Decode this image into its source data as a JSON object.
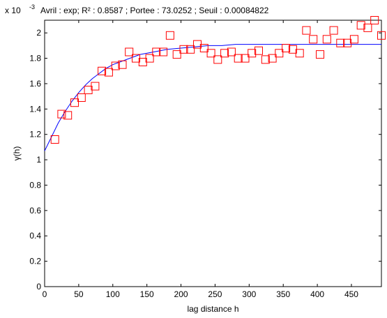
{
  "chart_data": {
    "type": "scatter",
    "title": "Avril : exp;  R² : 0.8587 ; Portee : 73.0252 ; Seuil : 0.00084822",
    "y_exponent_label": "x 10",
    "y_exponent": "-3",
    "xlabel": "lag distance h",
    "ylabel": "γ(h)",
    "xlim": [
      0,
      494
    ],
    "ylim": [
      0,
      0.0021
    ],
    "x_ticks": [
      0,
      50,
      100,
      150,
      200,
      250,
      300,
      350,
      400,
      450
    ],
    "y_ticks": [
      0,
      0.2,
      0.4,
      0.6,
      0.8,
      1,
      1.2,
      1.4,
      1.6,
      1.8,
      2
    ],
    "y_tick_scale": 0.001,
    "grid": false,
    "colors": {
      "points": "#ff0000",
      "fit": "#0000ff",
      "axes": "#000000"
    },
    "series": [
      {
        "type": "scatter",
        "marker": "square",
        "x": [
          15,
          25,
          34,
          44,
          54,
          64,
          74,
          84,
          94,
          104,
          114,
          124,
          134,
          144,
          154,
          164,
          174,
          184,
          194,
          204,
          214,
          224,
          234,
          244,
          254,
          264,
          274,
          284,
          294,
          304,
          314,
          324,
          334,
          344,
          354,
          364,
          374,
          384,
          394,
          404,
          414,
          424,
          434,
          444,
          454,
          464,
          474,
          484,
          494
        ],
        "y": [
          1.16,
          1.36,
          1.35,
          1.45,
          1.49,
          1.55,
          1.58,
          1.7,
          1.69,
          1.74,
          1.75,
          1.85,
          1.8,
          1.77,
          1.8,
          1.85,
          1.85,
          1.98,
          1.83,
          1.87,
          1.87,
          1.91,
          1.88,
          1.84,
          1.79,
          1.84,
          1.85,
          1.8,
          1.8,
          1.84,
          1.86,
          1.79,
          1.8,
          1.84,
          1.88,
          1.87,
          1.84,
          2.02,
          1.95,
          1.83,
          1.95,
          2.02,
          1.92,
          1.92,
          1.95,
          2.06,
          2.04,
          2.1,
          1.98
        ]
      },
      {
        "type": "line",
        "model": "exponential",
        "x": [
          0,
          10,
          20,
          30,
          40,
          50,
          60,
          70,
          80,
          90,
          100,
          120,
          140,
          160,
          180,
          200,
          220,
          240,
          260,
          280,
          300,
          350,
          400,
          450,
          494
        ],
        "y": [
          1.07,
          1.18,
          1.29,
          1.38,
          1.46,
          1.53,
          1.59,
          1.64,
          1.68,
          1.72,
          1.75,
          1.79,
          1.83,
          1.85,
          1.87,
          1.88,
          1.89,
          1.9,
          1.9,
          1.91,
          1.91,
          1.91,
          1.91,
          1.91,
          1.91
        ]
      }
    ]
  }
}
